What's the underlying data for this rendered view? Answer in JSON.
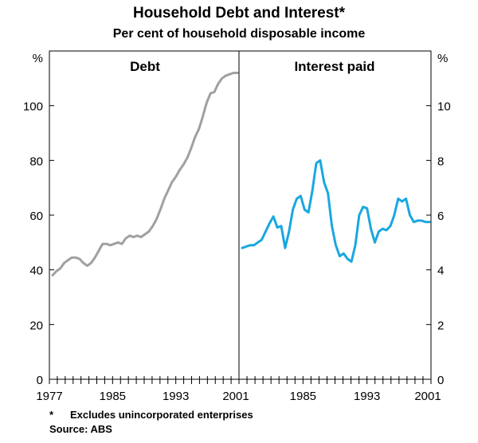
{
  "title": "Household Debt and Interest*",
  "subtitle": "Per cent of household disposable income",
  "footnote_marker": "*",
  "footnote": "Excludes unincorporated enterprises",
  "source": "Source: ABS",
  "chart_data": [
    {
      "type": "line",
      "panel_label": "Debt",
      "unit_label": "%",
      "x_ticks": [
        "1977",
        "1985",
        "1993",
        "2001"
      ],
      "xlim": [
        1977,
        2001
      ],
      "ylim": [
        0,
        120
      ],
      "y_ticks": [
        "0",
        "20",
        "40",
        "60",
        "80",
        "100"
      ],
      "grid": false,
      "color": "#a0a0a0",
      "series": [
        {
          "x": [
            1977.0,
            1977.5,
            1978.0,
            1978.5,
            1979.0,
            1979.5,
            1980.0,
            1980.5,
            1981.0,
            1981.5,
            1982.0,
            1982.5,
            1983.0,
            1983.5,
            1984.0,
            1984.5,
            1985.0,
            1985.5,
            1986.0,
            1986.5,
            1987.0,
            1987.5,
            1988.0,
            1988.5,
            1989.0,
            1989.5,
            1990.0,
            1990.5,
            1991.0,
            1991.5,
            1992.0,
            1992.5,
            1993.0,
            1993.5,
            1994.0,
            1994.5,
            1995.0,
            1995.5,
            1996.0,
            1996.5,
            1997.0,
            1997.5,
            1998.0,
            1998.5,
            1999.0,
            1999.5,
            2000.0,
            2000.5,
            2001.0
          ],
          "y": [
            38,
            39.5,
            40.5,
            42.5,
            43.5,
            44.5,
            44.5,
            44,
            42.5,
            41.5,
            42.5,
            44.5,
            47,
            49.5,
            49.5,
            49,
            49.5,
            50,
            49.5,
            51.5,
            52.5,
            52,
            52.5,
            52,
            53,
            54,
            56,
            58.5,
            62,
            66,
            69,
            72,
            74,
            76.5,
            78.5,
            81,
            84.5,
            88.5,
            91.5,
            96,
            101,
            104.5,
            105,
            108,
            110,
            111,
            111.5,
            112,
            112
          ]
        }
      ]
    },
    {
      "type": "line",
      "panel_label": "Interest paid",
      "unit_label": "%",
      "x_ticks": [
        "1985",
        "1993",
        "2001"
      ],
      "xlim": [
        1977,
        2001
      ],
      "ylim": [
        0,
        12
      ],
      "y_ticks": [
        "0",
        "2",
        "4",
        "6",
        "8",
        "10"
      ],
      "grid": false,
      "color": "#1aa7e0",
      "series": [
        {
          "x": [
            1977.0,
            1977.5,
            1978.0,
            1978.5,
            1979.0,
            1979.5,
            1980.0,
            1980.5,
            1981.0,
            1981.5,
            1982.0,
            1982.5,
            1983.0,
            1983.5,
            1984.0,
            1984.5,
            1985.0,
            1985.5,
            1986.0,
            1986.5,
            1987.0,
            1987.5,
            1988.0,
            1988.5,
            1989.0,
            1989.5,
            1990.0,
            1990.5,
            1991.0,
            1991.5,
            1992.0,
            1992.5,
            1993.0,
            1993.5,
            1994.0,
            1994.5,
            1995.0,
            1995.5,
            1996.0,
            1996.5,
            1997.0,
            1997.5,
            1998.0,
            1998.5,
            1999.0,
            1999.5,
            2000.0,
            2000.5,
            2001.0
          ],
          "y": [
            4.8,
            4.85,
            4.9,
            4.9,
            5.0,
            5.1,
            5.4,
            5.7,
            5.95,
            5.55,
            5.6,
            4.8,
            5.4,
            6.2,
            6.6,
            6.7,
            6.2,
            6.1,
            6.9,
            7.9,
            8.0,
            7.2,
            6.8,
            5.6,
            4.9,
            4.5,
            4.6,
            4.4,
            4.3,
            4.9,
            6.0,
            6.3,
            6.25,
            5.5,
            5.0,
            5.4,
            5.5,
            5.45,
            5.6,
            6.0,
            6.6,
            6.5,
            6.6,
            6.0,
            5.75,
            5.8,
            5.8,
            5.75,
            5.75
          ]
        }
      ]
    }
  ]
}
